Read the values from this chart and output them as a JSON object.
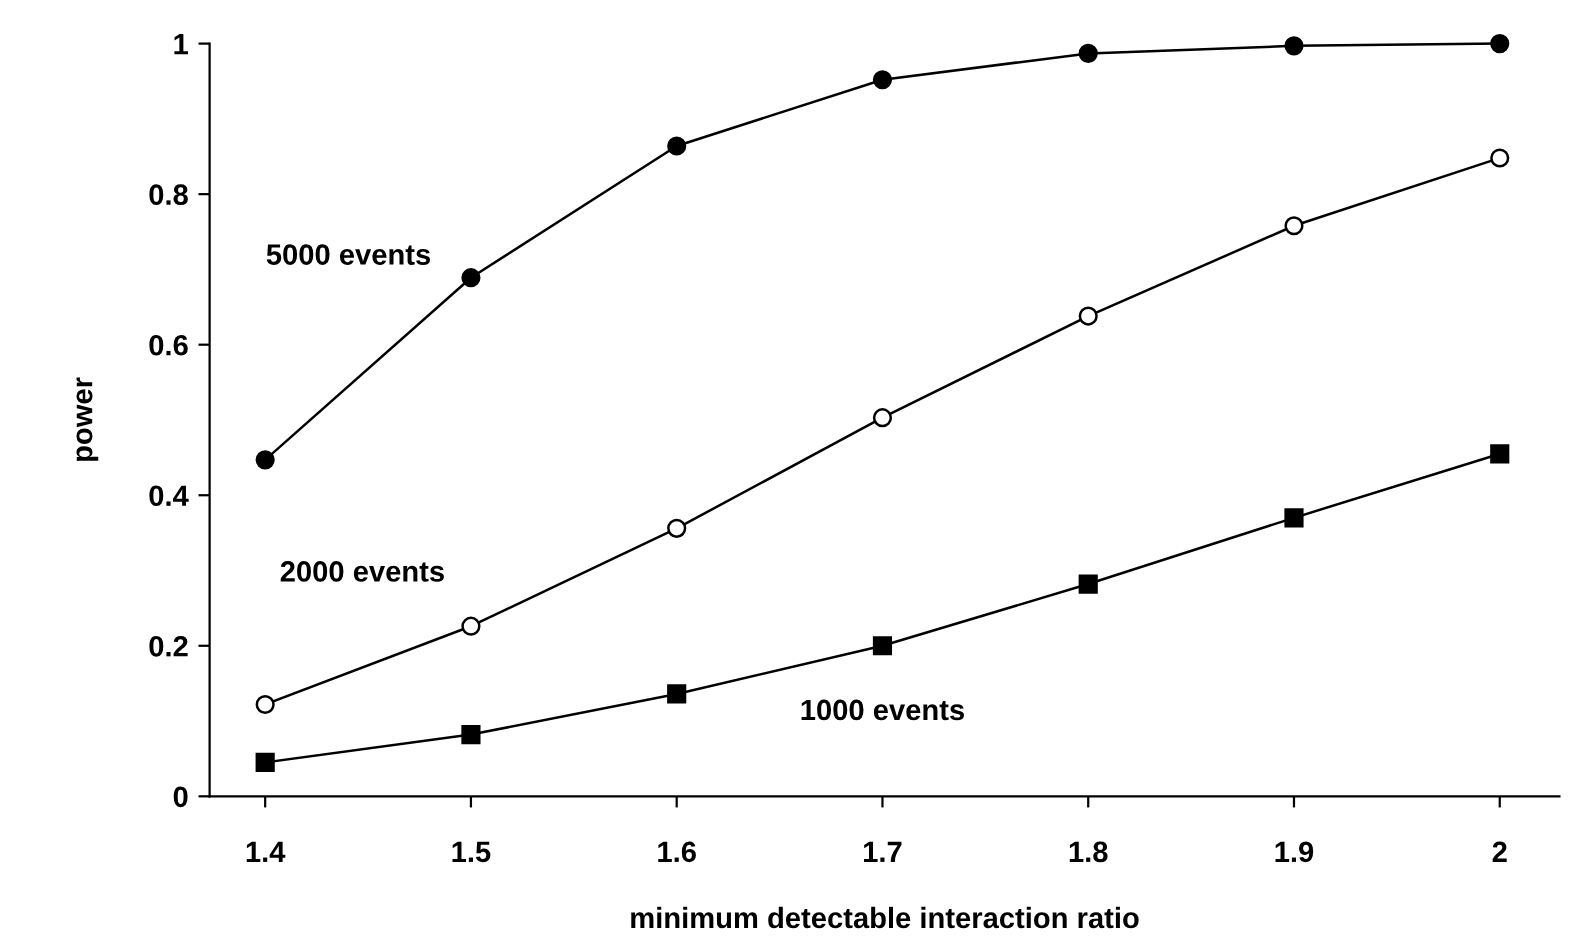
{
  "chart_data": {
    "type": "line",
    "xlabel": "minimum detectable interaction ratio",
    "ylabel": "power",
    "categories": [
      "1.4",
      "1.5",
      "1.6",
      "1.7",
      "1.8",
      "1.9",
      "2"
    ],
    "ylim": [
      0,
      1
    ],
    "yticks": [
      0,
      0.2,
      0.4,
      0.6,
      0.8,
      1
    ],
    "grid": false,
    "legend": false,
    "line_style": "solid",
    "series": [
      {
        "name": "5000 events",
        "color": "#000000",
        "marker": "circle",
        "values": [
          0.447,
          0.689,
          0.864,
          0.952,
          0.987,
          0.997,
          1.0
        ]
      },
      {
        "name": "2000 events",
        "color": "#000000",
        "marker": "circle",
        "values": [
          0.122,
          0.226,
          0.356,
          0.503,
          0.638,
          0.758,
          0.848
        ]
      },
      {
        "name": "1000 events",
        "color": "#000000",
        "marker": "square",
        "values": [
          0.045,
          0.082,
          0.136,
          0.2,
          0.282,
          0.37,
          0.455
        ]
      }
    ]
  }
}
